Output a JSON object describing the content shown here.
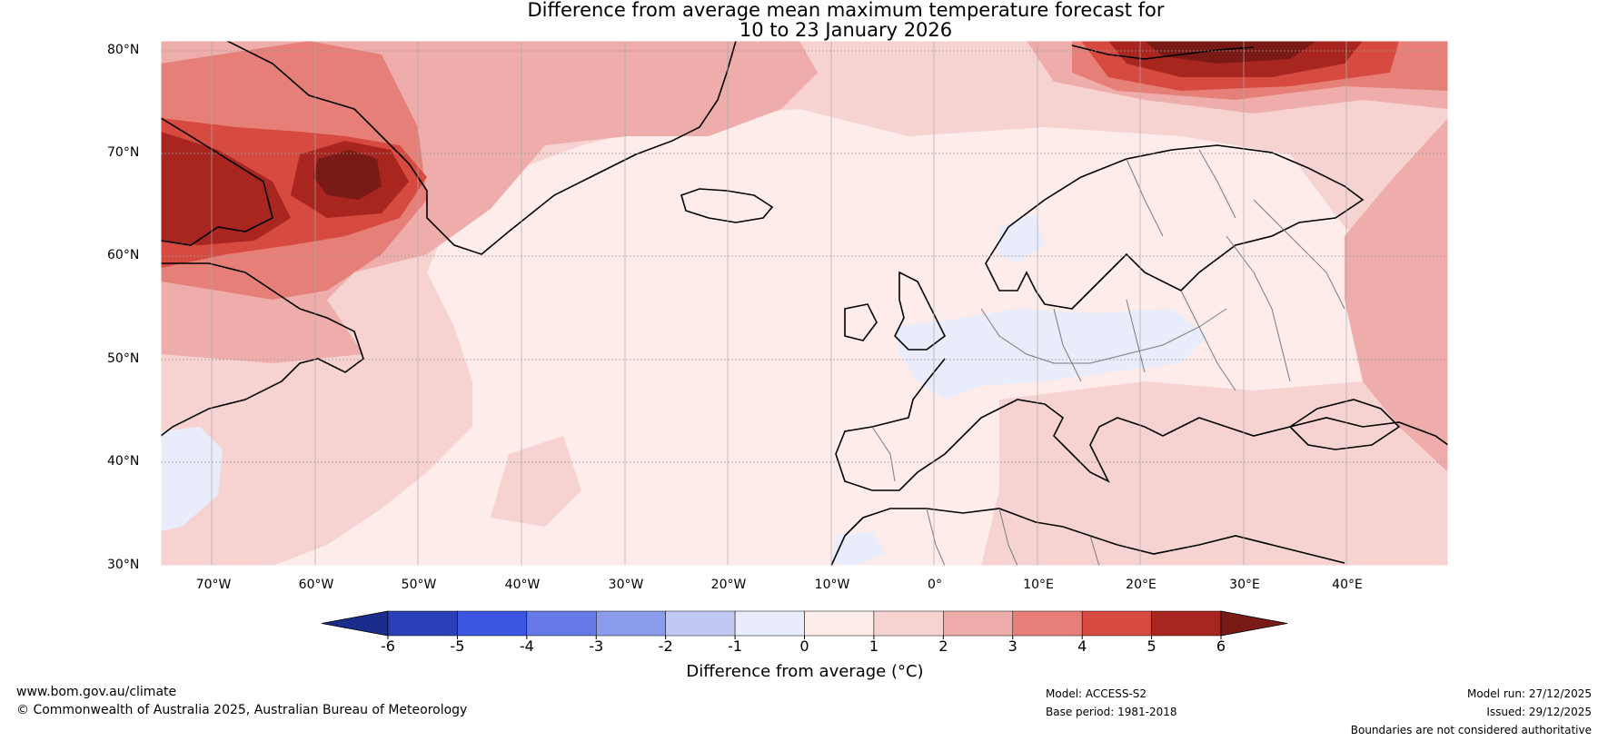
{
  "title": {
    "line1": "Difference from average mean maximum temperature forecast for",
    "line2": "10 to 23 January 2026"
  },
  "map": {
    "lat_labels": [
      "80°N",
      "70°N",
      "60°N",
      "50°N",
      "40°N",
      "30°N"
    ],
    "lon_labels": [
      "70°W",
      "60°W",
      "50°W",
      "40°W",
      "30°W",
      "20°W",
      "10°W",
      "0°",
      "10°E",
      "20°E",
      "30°E",
      "40°E"
    ],
    "lat_range": [
      30,
      80
    ],
    "lon_range": [
      -75,
      50
    ]
  },
  "colorbar": {
    "ticks": [
      "-6",
      "-5",
      "-4",
      "-3",
      "-2",
      "-1",
      "0",
      "1",
      "2",
      "3",
      "4",
      "5",
      "6"
    ],
    "colors": [
      "#1a2c8c",
      "#2a3fb8",
      "#3a55e0",
      "#6579e8",
      "#8a9ceb",
      "#c0c8f3",
      "#e8ecfb",
      "#fdecea",
      "#f6d3d1",
      "#eeadaa",
      "#e57f78",
      "#d64a3f",
      "#a8261f",
      "#7a1a16"
    ],
    "label": "Difference from average (°C)"
  },
  "colors": {
    "neg_light": "#e8ecfb",
    "pos_0_1": "#fdecea",
    "pos_1_2": "#f6d3d1",
    "pos_2_3": "#eeadaa",
    "pos_3_4": "#e57f78",
    "pos_4_5": "#d64a3f",
    "pos_5_6": "#a8261f",
    "pos_6plus": "#7a1a16"
  },
  "footer": {
    "website": "www.bom.gov.au/climate",
    "copyright": "© Commonwealth of Australia 2025, Australian Bureau of Meteorology",
    "model": "Model: ACCESS-S2",
    "base_period": "Base period: 1981-2018",
    "model_run": "Model run: 27/12/2025",
    "issued": "Issued: 29/12/2025",
    "disclaimer": "Boundaries are not considered authoritative"
  }
}
